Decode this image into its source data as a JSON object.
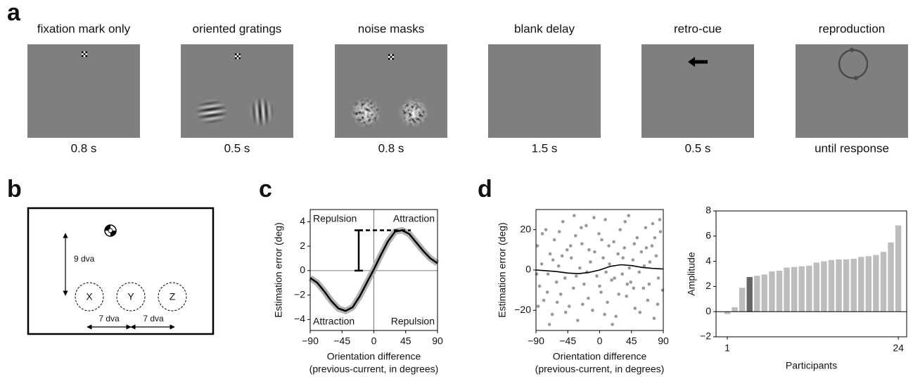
{
  "panel_labels": [
    "a",
    "b",
    "c",
    "d"
  ],
  "trial": {
    "steps": [
      {
        "label": "fixation mark only",
        "duration": "0.8 s"
      },
      {
        "label": "oriented gratings",
        "duration": "0.5 s"
      },
      {
        "label": "noise masks",
        "duration": "0.8 s"
      },
      {
        "label": "blank delay",
        "duration": "1.5 s"
      },
      {
        "label": "retro-cue",
        "duration": "0.5 s"
      },
      {
        "label": "reproduction",
        "duration": "until response"
      }
    ]
  },
  "layout": {
    "vertical_distance": "9 dva",
    "locations": [
      "X",
      "Y",
      "Z"
    ],
    "horizontal_distances": [
      "7 dva",
      "7 dva"
    ]
  },
  "chart_data": [
    {
      "type": "line",
      "x": [
        -90,
        -80,
        -70,
        -60,
        -50,
        -40,
        -30,
        -20,
        -10,
        0,
        10,
        20,
        30,
        40,
        50,
        60,
        70,
        80,
        90
      ],
      "values": [
        -0.6,
        -1.0,
        -1.7,
        -2.5,
        -3.1,
        -3.3,
        -3.0,
        -2.1,
        -1.0,
        0.1,
        1.3,
        2.4,
        3.2,
        3.3,
        3.0,
        2.3,
        1.6,
        1.0,
        0.6
      ],
      "color": "#000000",
      "band_color": "#aaaaaa",
      "amplitude": 3.3,
      "annotations": [
        "Repulsion",
        "Attraction",
        "Attraction",
        "Repulsion"
      ],
      "xlabel": [
        "Orientation difference",
        "(previous-current, in degrees)"
      ],
      "ylabel": "Estimation error (deg)",
      "xlim": [
        -90,
        90
      ],
      "ylim": [
        -4.9,
        5
      ],
      "xticks": [
        {
          "value": -90,
          "label": "−90"
        },
        {
          "value": -45,
          "label": "−45"
        },
        0,
        45,
        90
      ],
      "yticks": [
        {
          "value": -4,
          "label": "−4"
        },
        {
          "value": -2,
          "label": "−2"
        },
        0,
        2,
        4
      ]
    },
    {
      "type": "scatter",
      "x": [
        -88,
        -85,
        -82,
        -79,
        -76,
        -73,
        -70,
        -67,
        -64,
        -61,
        -58,
        -55,
        -52,
        -49,
        -46,
        -43,
        -40,
        -37,
        -34,
        -31,
        -28,
        -25,
        -22,
        -19,
        -16,
        -13,
        -10,
        -7,
        -4,
        -1,
        2,
        5,
        8,
        11,
        14,
        17,
        20,
        23,
        26,
        29,
        32,
        35,
        38,
        41,
        44,
        47,
        50,
        53,
        56,
        59,
        62,
        65,
        68,
        71,
        74,
        77,
        80,
        83,
        86,
        89,
        -87,
        -81,
        -74,
        -66,
        -57,
        -48,
        -41,
        -33,
        -24,
        -15,
        -8,
        0,
        7,
        13,
        21,
        27,
        36,
        42,
        49,
        57,
        63,
        70,
        78,
        85,
        -89,
        -71,
        -53,
        -36,
        -18,
        3,
        18,
        33,
        48,
        66,
        82,
        -60,
        -26,
        9,
        39,
        75
      ],
      "values": [
        12,
        -8,
        3,
        -15,
        20,
        -2,
        8,
        -22,
        15,
        -6,
        2,
        -12,
        24,
        -4,
        10,
        -18,
        6,
        -9,
        17,
        -25,
        1,
        13,
        -7,
        22,
        -14,
        4,
        -20,
        9,
        -3,
        18,
        -11,
        6,
        25,
        -16,
        3,
        -5,
        14,
        -23,
        8,
        20,
        -2,
        11,
        -13,
        27,
        -6,
        5,
        -19,
        16,
        -1,
        9,
        -9,
        21,
        -15,
        4,
        12,
        -24,
        7,
        -4,
        19,
        -10,
        -18,
        18,
        -11,
        5,
        19,
        -21,
        12,
        -3,
        -17,
        10,
        26,
        -8,
        -22,
        12,
        -4,
        -12,
        24,
        1,
        13,
        -21,
        2,
        -7,
        16,
        25,
        -2,
        -27,
        7,
        27,
        -1,
        15,
        -27,
        6,
        -9,
        11,
        -17,
        -16,
        21,
        -1,
        -7,
        23
      ],
      "color": "#999999",
      "fit": {
        "x": [
          -90,
          -75,
          -60,
          -45,
          -30,
          -15,
          0,
          15,
          30,
          45,
          60,
          75,
          90
        ],
        "values": [
          0,
          -0.4,
          -0.8,
          -1.5,
          -1.8,
          -1.2,
          0,
          1.8,
          2.6,
          2.2,
          1.3,
          0.8,
          0.5
        ],
        "color": "#000000"
      },
      "xlabel": [
        "Orientation difference",
        "(previous-current, in degrees)"
      ],
      "ylabel": "Estimation error (deg)",
      "xlim": [
        -90,
        90
      ],
      "ylim": [
        -30,
        30
      ],
      "xticks": [
        {
          "value": -90,
          "label": "−90"
        },
        {
          "value": -45,
          "label": "−45"
        },
        0,
        45,
        90
      ],
      "yticks": [
        {
          "value": -20,
          "label": "−20"
        },
        0,
        20
      ]
    },
    {
      "type": "bar",
      "categories": [
        "1",
        null,
        null,
        null,
        null,
        null,
        null,
        null,
        null,
        null,
        null,
        null,
        null,
        null,
        null,
        null,
        null,
        null,
        null,
        null,
        null,
        null,
        null,
        "24"
      ],
      "values": [
        -0.2,
        0.35,
        1.9,
        2.75,
        2.85,
        2.95,
        3.2,
        3.25,
        3.5,
        3.55,
        3.6,
        3.65,
        3.9,
        4.0,
        4.1,
        4.15,
        4.15,
        4.2,
        4.35,
        4.4,
        4.5,
        4.75,
        5.5,
        6.85
      ],
      "colors": [
        "#bdbdbd",
        "#bdbdbd",
        "#bdbdbd",
        "#666666",
        "#bdbdbd",
        "#bdbdbd",
        "#bdbdbd",
        "#bdbdbd",
        "#bdbdbd",
        "#bdbdbd",
        "#bdbdbd",
        "#bdbdbd",
        "#bdbdbd",
        "#bdbdbd",
        "#bdbdbd",
        "#bdbdbd",
        "#bdbdbd",
        "#bdbdbd",
        "#bdbdbd",
        "#bdbdbd",
        "#bdbdbd",
        "#bdbdbd",
        "#bdbdbd",
        "#bdbdbd"
      ],
      "xlabel": [
        "Participants"
      ],
      "ylabel": "Amplitude",
      "ylim": [
        -2,
        8
      ],
      "yticks": [
        {
          "value": -2,
          "label": "−2"
        },
        0,
        2,
        4,
        6,
        8
      ]
    }
  ]
}
